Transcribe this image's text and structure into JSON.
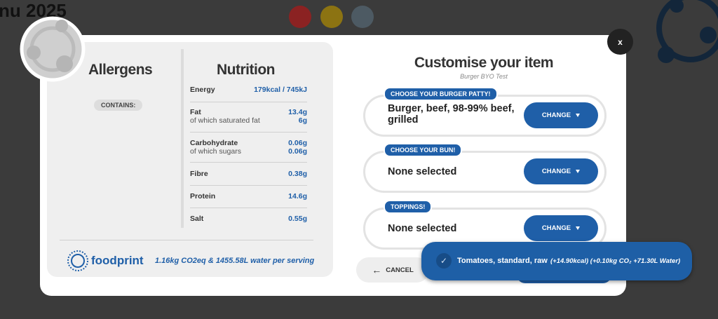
{
  "background": {
    "title": "nu 2025"
  },
  "allergens": {
    "title": "Allergens",
    "contains": "CONTAINS:"
  },
  "nutrition": {
    "title": "Nutrition",
    "rows": [
      {
        "label": "Energy",
        "value": "179kcal / 745kJ"
      },
      {
        "label": "Fat",
        "value": "13.4g",
        "sub_label": "of which saturated fat",
        "sub_value": "6g"
      },
      {
        "label": "Carbohydrate",
        "value": "0.06g",
        "sub_label": "of which sugars",
        "sub_value": "0.06g"
      },
      {
        "label": "Fibre",
        "value": "0.38g"
      },
      {
        "label": "Protein",
        "value": "14.6g"
      },
      {
        "label": "Salt",
        "value": "0.55g"
      }
    ]
  },
  "footprint": {
    "brand": "foodprint",
    "text": "1.16kg CO2eq & 1455.58L water per serving"
  },
  "customise": {
    "title": "Customise your item",
    "subtitle": "Burger BYO Test",
    "button": "CHANGE",
    "sections": [
      {
        "tag": "CHOOSE YOUR BURGER PATTY!",
        "value": "Burger, beef, 98-99% beef, grilled"
      },
      {
        "tag": "CHOOSE YOUR BUN!",
        "value": "None selected"
      },
      {
        "tag": "TOPPINGS!",
        "value": "None selected"
      }
    ]
  },
  "cancel": "CANCEL",
  "close": "x",
  "toast": {
    "item": "Tomatoes, standard, raw",
    "detail": "(+14.90kcal) (+0.10kg CO₂ +71.30L Water)"
  }
}
